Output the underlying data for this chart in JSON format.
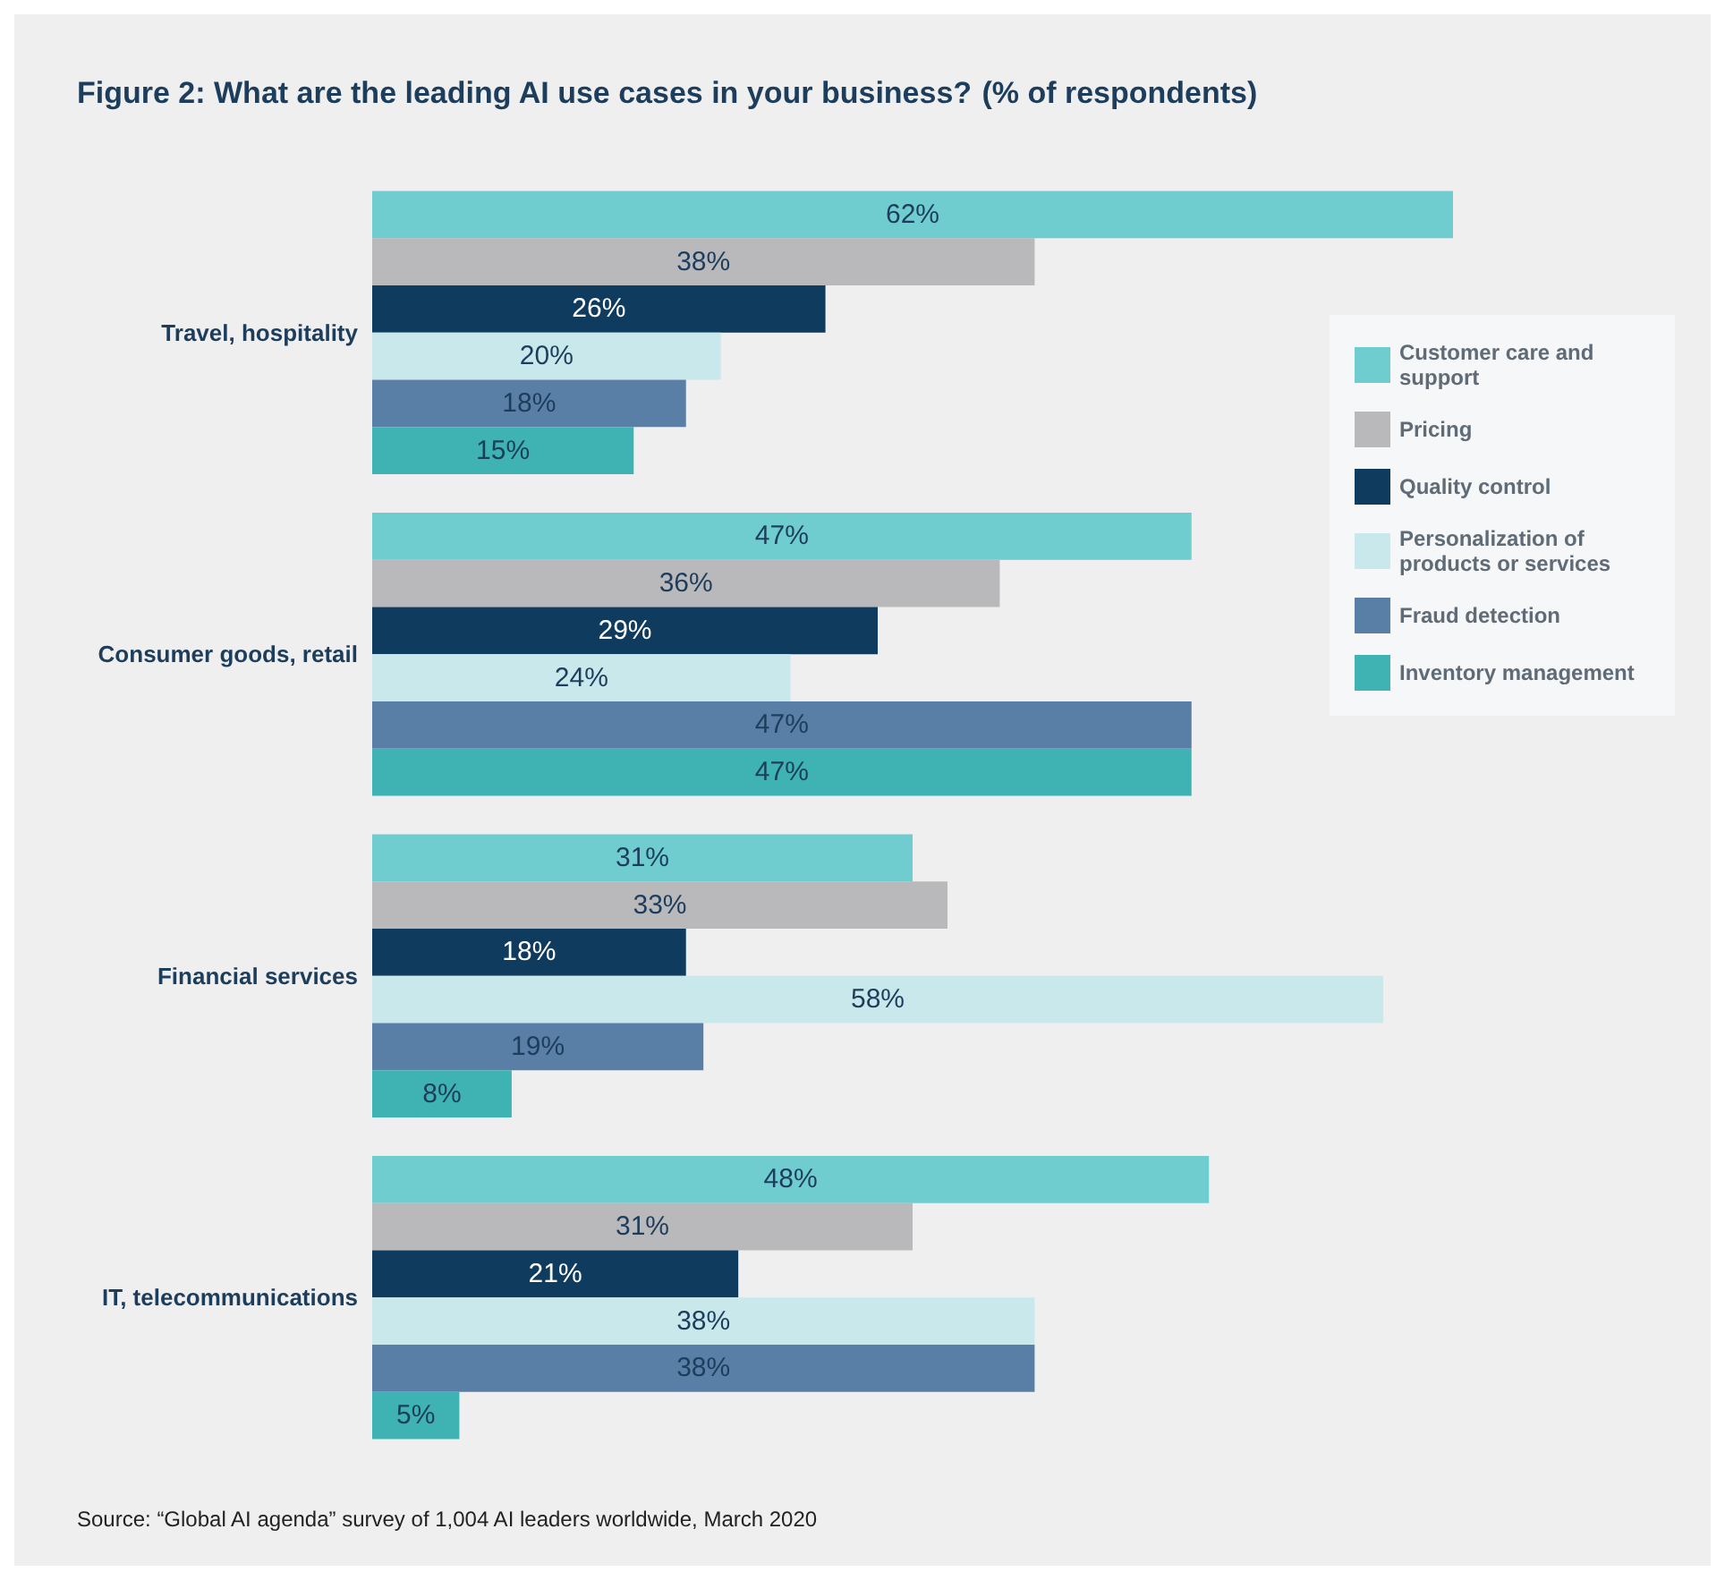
{
  "chart_data": {
    "type": "bar",
    "orientation": "horizontal",
    "title": "Figure 2: What are the leading AI use cases in your business?",
    "subtitle": "(% of respondents)",
    "categories": [
      "Travel, hospitality",
      "Consumer goods, retail",
      "Financial services",
      "IT, telecommunications"
    ],
    "series": [
      {
        "name": "Customer care and support",
        "color": "#6fcdd0",
        "values": [
          62,
          47,
          31,
          48
        ],
        "value_labels": [
          "62%",
          "47%",
          "31%",
          "48%"
        ]
      },
      {
        "name": "Pricing",
        "color": "#b9b9bb",
        "values": [
          38,
          36,
          33,
          31
        ],
        "value_labels": [
          "38%",
          "36%",
          "33%",
          "31%"
        ]
      },
      {
        "name": "Quality control",
        "color": "#0e3b5e",
        "values": [
          26,
          29,
          18,
          21
        ],
        "value_labels": [
          "26%",
          "29%",
          "18%",
          "21%"
        ]
      },
      {
        "name": "Personalization of products or services",
        "color": "#c9e8ec",
        "values": [
          20,
          24,
          58,
          38
        ],
        "value_labels": [
          "20%",
          "24%",
          "58%",
          "38%"
        ]
      },
      {
        "name": "Fraud detection",
        "color": "#5a7fa6",
        "values": [
          18,
          47,
          19,
          38
        ],
        "value_labels": [
          "18%",
          "47%",
          "19%",
          "38%"
        ]
      },
      {
        "name": "Inventory management",
        "color": "#3fb3b3",
        "values": [
          15,
          47,
          8,
          5
        ],
        "value_labels": [
          "15%",
          "47%",
          "8%",
          "5%"
        ]
      }
    ],
    "legend": "right",
    "annotations": [
      "Source: “Global AI agenda” survey of 1,004 AI leaders worldwide, March 2020"
    ]
  }
}
